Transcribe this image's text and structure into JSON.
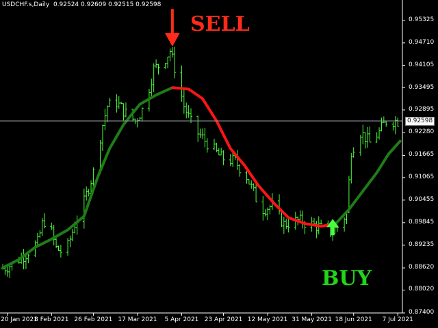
{
  "header": {
    "symbol": "USDCHF.s,Daily",
    "ohlc": "0.92524 0.92609 0.92515 0.92598"
  },
  "annotations": {
    "sell": "SELL",
    "buy": "BUY"
  },
  "price_axis": {
    "labels": [
      "0.95325",
      "0.94710",
      "0.94105",
      "0.93495",
      "0.92895",
      "0.92280",
      "0.91665",
      "0.91065",
      "0.90455",
      "0.89845",
      "0.89235",
      "0.88620",
      "0.88020",
      "0.87400"
    ],
    "current": "0.92598"
  },
  "time_axis": {
    "labels": [
      "20 Jan 2021",
      "8 Feb 2021",
      "26 Feb 2021",
      "17 Mar 2021",
      "5 Apr 2021",
      "23 Apr 2021",
      "12 May 2021",
      "31 May 2021",
      "18 Jun 2021",
      "7 Jul 2021"
    ]
  },
  "colors": {
    "background": "#000000",
    "bull_bar": "#4cff3c",
    "ma_up": "#1e7d16",
    "ma_down": "#ff1414",
    "sell": "#ff2a1a",
    "buy": "#22d51a",
    "grid": "#ffffff"
  },
  "chart_data": {
    "type": "line",
    "title": "",
    "xlabel": "",
    "ylabel": "",
    "ylim": [
      0.874,
      0.9565
    ],
    "x_range": [
      "2021-01-18",
      "2021-07-09"
    ],
    "price_path": [
      [
        "2021-01-18",
        0.886
      ],
      [
        "2021-01-22",
        0.8872
      ],
      [
        "2021-01-28",
        0.89
      ],
      [
        "2021-02-02",
        0.893
      ],
      [
        "2021-02-04",
        0.898
      ],
      [
        "2021-02-06",
        0.8998
      ],
      [
        "2021-02-10",
        0.8915
      ],
      [
        "2021-02-14",
        0.89
      ],
      [
        "2021-02-18",
        0.898
      ],
      [
        "2021-02-22",
        0.904
      ],
      [
        "2021-02-26",
        0.912
      ],
      [
        "2021-03-02",
        0.925
      ],
      [
        "2021-03-04",
        0.93
      ],
      [
        "2021-03-08",
        0.931
      ],
      [
        "2021-03-12",
        0.928
      ],
      [
        "2021-03-16",
        0.926
      ],
      [
        "2021-03-20",
        0.93
      ],
      [
        "2021-03-24",
        0.94
      ],
      [
        "2021-03-28",
        0.942
      ],
      [
        "2021-03-31",
        0.945
      ],
      [
        "2021-04-03",
        0.938
      ],
      [
        "2021-04-06",
        0.93
      ],
      [
        "2021-04-10",
        0.924
      ],
      [
        "2021-04-16",
        0.92
      ],
      [
        "2021-04-22",
        0.916
      ],
      [
        "2021-04-28",
        0.915
      ],
      [
        "2021-05-03",
        0.911
      ],
      [
        "2021-05-09",
        0.902
      ],
      [
        "2021-05-14",
        0.903
      ],
      [
        "2021-05-19",
        0.898
      ],
      [
        "2021-05-25",
        0.899
      ],
      [
        "2021-05-31",
        0.898
      ],
      [
        "2021-06-04",
        0.897
      ],
      [
        "2021-06-09",
        0.896
      ],
      [
        "2021-06-12",
        0.898
      ],
      [
        "2021-06-15",
        0.901
      ],
      [
        "2021-06-17",
        0.918
      ],
      [
        "2021-06-21",
        0.923
      ],
      [
        "2021-06-25",
        0.92
      ],
      [
        "2021-06-29",
        0.923
      ],
      [
        "2021-07-02",
        0.926
      ],
      [
        "2021-07-08",
        0.926
      ]
    ],
    "series": [
      {
        "role": "moving-average-rising",
        "color": "#1e7d16",
        "points": [
          [
            "2021-01-18",
            0.8862
          ],
          [
            "2021-01-25",
            0.8885
          ],
          [
            "2021-02-01",
            0.8918
          ],
          [
            "2021-02-08",
            0.894
          ],
          [
            "2021-02-15",
            0.8965
          ],
          [
            "2021-02-22",
            0.9002
          ],
          [
            "2021-02-28",
            0.911
          ],
          [
            "2021-03-05",
            0.9185
          ],
          [
            "2021-03-11",
            0.925
          ],
          [
            "2021-03-18",
            0.9305
          ],
          [
            "2021-03-25",
            0.933
          ],
          [
            "2021-04-01",
            0.935
          ]
        ]
      },
      {
        "role": "moving-average-falling",
        "color": "#ff1414",
        "points": [
          [
            "2021-04-01",
            0.935
          ],
          [
            "2021-04-08",
            0.9346
          ],
          [
            "2021-04-14",
            0.932
          ],
          [
            "2021-04-20",
            0.926
          ],
          [
            "2021-04-26",
            0.9185
          ],
          [
            "2021-05-02",
            0.914
          ],
          [
            "2021-05-08",
            0.9085
          ],
          [
            "2021-05-15",
            0.9035
          ],
          [
            "2021-05-21",
            0.8998
          ],
          [
            "2021-05-28",
            0.8982
          ],
          [
            "2021-06-04",
            0.8975
          ],
          [
            "2021-06-10",
            0.898
          ]
        ]
      },
      {
        "role": "moving-average-rising",
        "color": "#1e7d16",
        "points": [
          [
            "2021-06-10",
            0.898
          ],
          [
            "2021-06-16",
            0.902
          ],
          [
            "2021-06-22",
            0.907
          ],
          [
            "2021-06-28",
            0.912
          ],
          [
            "2021-07-03",
            0.917
          ],
          [
            "2021-07-08",
            0.9205
          ]
        ]
      }
    ],
    "current_price": 0.92598,
    "signals": [
      {
        "type": "sell",
        "date": "2021-04-01",
        "price": 0.945
      },
      {
        "type": "buy",
        "date": "2021-06-09",
        "price": 0.8965
      }
    ],
    "grid": false
  }
}
